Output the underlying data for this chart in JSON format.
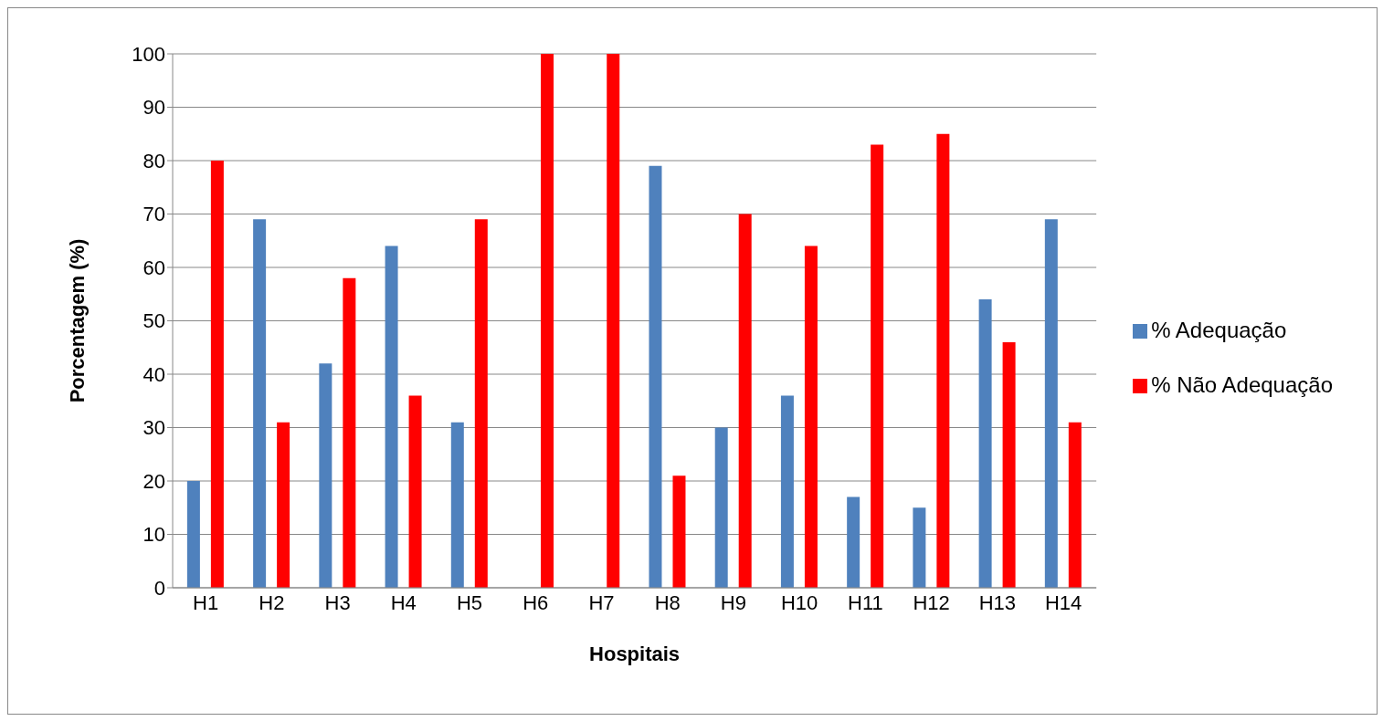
{
  "chart_data": {
    "type": "bar",
    "xlabel": "Hospitais",
    "ylabel": "Porcentagem  (%)",
    "categories": [
      "H1",
      "H2",
      "H3",
      "H4",
      "H5",
      "H6",
      "H7",
      "H8",
      "H9",
      "H10",
      "H11",
      "H12",
      "H13",
      "H14"
    ],
    "series": [
      {
        "name": "% Adequação",
        "color": "#4f81bd",
        "values": [
          20,
          69,
          42,
          64,
          31,
          0,
          0,
          79,
          30,
          36,
          17,
          15,
          54,
          69
        ]
      },
      {
        "name": "% Não Adequação",
        "color": "#ff0000",
        "values": [
          80,
          31,
          58,
          36,
          69,
          100,
          100,
          21,
          70,
          64,
          83,
          85,
          46,
          31
        ]
      }
    ],
    "ylim": [
      0,
      100
    ],
    "yticks": [
      0,
      10,
      20,
      30,
      40,
      50,
      60,
      70,
      80,
      90,
      100
    ],
    "grid": "y",
    "legend": "right"
  }
}
